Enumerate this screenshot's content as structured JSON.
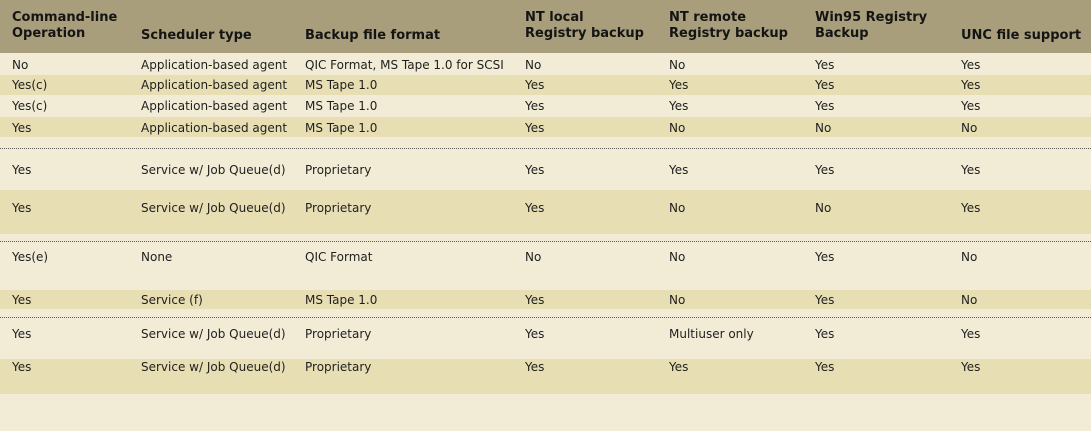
{
  "table": {
    "headers": [
      "Command-line\nOperation",
      "Scheduler type",
      "Backup file format",
      "NT local\nRegistry backup",
      "NT remote\nRegistry backup",
      "Win95 Registry\nBackup",
      "UNC file support"
    ],
    "rows": [
      [
        "No",
        "Application-based agent",
        "QIC Format, MS Tape 1.0 for SCSI",
        "No",
        "No",
        "Yes",
        "Yes"
      ],
      [
        "Yes(c)",
        "Application-based agent",
        "MS Tape 1.0",
        "Yes",
        "Yes",
        "Yes",
        "Yes"
      ],
      [
        "Yes(c)",
        "Application-based agent",
        "MS Tape 1.0",
        "Yes",
        "Yes",
        "Yes",
        "Yes"
      ],
      [
        "Yes",
        "Application-based agent",
        "MS Tape 1.0",
        "Yes",
        "No",
        "No",
        "No"
      ],
      [
        "Yes",
        "Service w/ Job Queue(d)",
        "Proprietary",
        "Yes",
        "Yes",
        "Yes",
        "Yes"
      ],
      [
        "Yes",
        "Service w/ Job Queue(d)",
        "Proprietary",
        "Yes",
        "No",
        "No",
        "Yes"
      ],
      [
        "Yes(e)",
        "None",
        "QIC Format",
        "No",
        "No",
        "Yes",
        "No"
      ],
      [
        "Yes",
        "Service (f)",
        "MS Tape 1.0",
        "Yes",
        "No",
        "Yes",
        "No"
      ],
      [
        "Yes",
        "Service w/ Job Queue(d)",
        "Proprietary",
        "Yes",
        "Multiuser only",
        "Yes",
        "Yes"
      ],
      [
        "Yes",
        "Service w/ Job Queue(d)",
        "Proprietary",
        "Yes",
        "Yes",
        "Yes",
        "Yes"
      ]
    ]
  },
  "colors": {
    "header_bg": "#a99e7b",
    "row_light": "#f2ecd7",
    "row_dark": "#e8deb3"
  }
}
